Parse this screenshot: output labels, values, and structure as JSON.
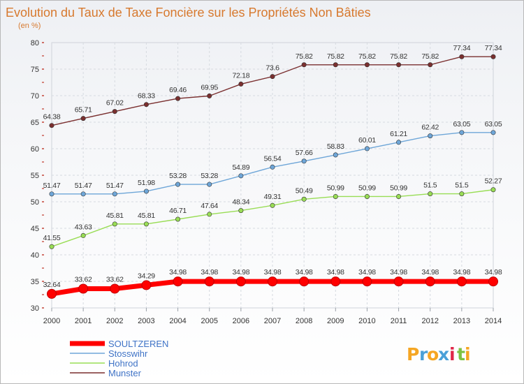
{
  "chart_data": {
    "type": "line",
    "title": "Evolution du Taux de Taxe Foncière sur les Propriétés Non Bâties",
    "subtitle": "(en %)",
    "xlabel": "",
    "ylabel": "",
    "ylim": [
      30,
      80
    ],
    "yticks": [
      "30",
      "35",
      "40",
      "45",
      "50",
      "55",
      "60",
      "65",
      "70",
      "75",
      "80"
    ],
    "grid": true,
    "legend_position": "bottom-left",
    "x": [
      "2000",
      "2001",
      "2002",
      "2003",
      "2004",
      "2005",
      "2006",
      "2007",
      "2008",
      "2009",
      "2010",
      "2011",
      "2012",
      "2013",
      "2014"
    ],
    "series": [
      {
        "name": "SOULTZEREN",
        "color": "#ff0000",
        "values": [
          32.64,
          33.62,
          33.62,
          34.29,
          34.98,
          34.98,
          34.98,
          34.98,
          34.98,
          34.98,
          34.98,
          34.98,
          34.98,
          34.98,
          34.98
        ],
        "labels": [
          "32.64",
          "33.62",
          "33.62",
          "34.29",
          "34.98",
          "34.98",
          "34.98",
          "34.98",
          "34.98",
          "34.98",
          "34.98",
          "34.98",
          "34.98",
          "34.98",
          "34.98"
        ]
      },
      {
        "name": "Stosswihr",
        "color": "#6ea6d8",
        "values": [
          51.47,
          51.47,
          51.47,
          51.98,
          53.28,
          53.28,
          54.89,
          56.54,
          57.66,
          58.83,
          60.01,
          61.21,
          62.42,
          63.05,
          63.05
        ],
        "labels": [
          "51.47",
          "51.47",
          "51.47",
          "51.98",
          "53.28",
          "53.28",
          "54.89",
          "56.54",
          "57.66",
          "58.83",
          "60.01",
          "61.21",
          "62.42",
          "63.05",
          "63.05"
        ]
      },
      {
        "name": "Hohrod",
        "color": "#99dd55",
        "values": [
          41.55,
          43.63,
          45.81,
          45.81,
          46.71,
          47.64,
          48.34,
          49.31,
          50.49,
          50.99,
          50.99,
          50.99,
          51.5,
          51.5,
          52.27
        ],
        "labels": [
          "41.55",
          "43.63",
          "45.81",
          "45.81",
          "46.71",
          "47.64",
          "48.34",
          "49.31",
          "50.49",
          "50.99",
          "50.99",
          "50.99",
          "51.5",
          "51.5",
          "52.27"
        ]
      },
      {
        "name": "Munster",
        "color": "#7a2f2f",
        "values": [
          64.38,
          65.71,
          67.02,
          68.33,
          69.46,
          69.95,
          72.18,
          73.6,
          75.82,
          75.82,
          75.82,
          75.82,
          75.82,
          77.34,
          77.34
        ],
        "labels": [
          "64.38",
          "65.71",
          "67.02",
          "68.33",
          "69.46",
          "69.95",
          "72.18",
          "73.6",
          "75.82",
          "75.82",
          "75.82",
          "75.82",
          "75.82",
          "77.34",
          "77.34"
        ]
      }
    ]
  },
  "logo": {
    "letters": [
      "P",
      "r",
      "o",
      "x",
      "i",
      "t",
      "i"
    ],
    "colors": [
      "#f5a623",
      "#4aa0d8",
      "#f5a623",
      "#4aa0d8",
      "#e0284a",
      "#7cc242",
      "#f5a623"
    ]
  }
}
